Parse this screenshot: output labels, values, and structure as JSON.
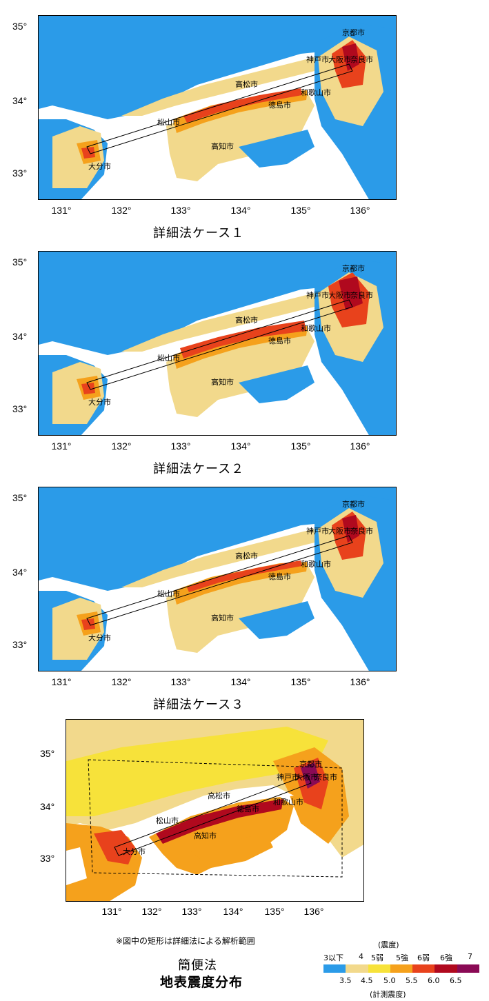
{
  "maps": [
    {
      "caption": "詳細法ケース１",
      "lat_labels": [
        "35°",
        "34°",
        "33°"
      ],
      "lon_labels": [
        "131°",
        "132°",
        "133°",
        "134°",
        "135°",
        "136°"
      ]
    },
    {
      "caption": "詳細法ケース２",
      "lat_labels": [
        "35°",
        "34°",
        "33°"
      ],
      "lon_labels": [
        "131°",
        "132°",
        "133°",
        "134°",
        "135°",
        "136°"
      ]
    },
    {
      "caption": "詳細法ケース３",
      "lat_labels": [
        "35°",
        "34°",
        "33°"
      ],
      "lon_labels": [
        "131°",
        "132°",
        "133°",
        "134°",
        "135°",
        "136°"
      ]
    },
    {
      "caption": "簡便法",
      "lat_labels": [
        "35°",
        "34°",
        "33°"
      ],
      "lon_labels": [
        "131°",
        "132°",
        "133°",
        "134°",
        "135°",
        "136°"
      ]
    }
  ],
  "cities": [
    "京都市",
    "神戸市",
    "大阪市",
    "奈良市",
    "高松市",
    "和歌山市",
    "徳島市",
    "松山市",
    "高知市",
    "大分市"
  ],
  "note": "※図中の矩形は詳細法による解析範囲",
  "title": "地表震度分布",
  "legend": {
    "top_title": "(震度)",
    "intensity_labels": [
      "3以下",
      "4",
      "5弱",
      "5強",
      "6弱",
      "6強",
      "7"
    ],
    "boundary_values": [
      "3.5",
      "4.5",
      "5.0",
      "5.5",
      "6.0",
      "6.5"
    ],
    "bottom_title": "(計測震度)",
    "colors": [
      "#2b9be8",
      "#f2d98c",
      "#f7e23a",
      "#f5a11c",
      "#e8421c",
      "#b0091e",
      "#8a0a55"
    ]
  }
}
